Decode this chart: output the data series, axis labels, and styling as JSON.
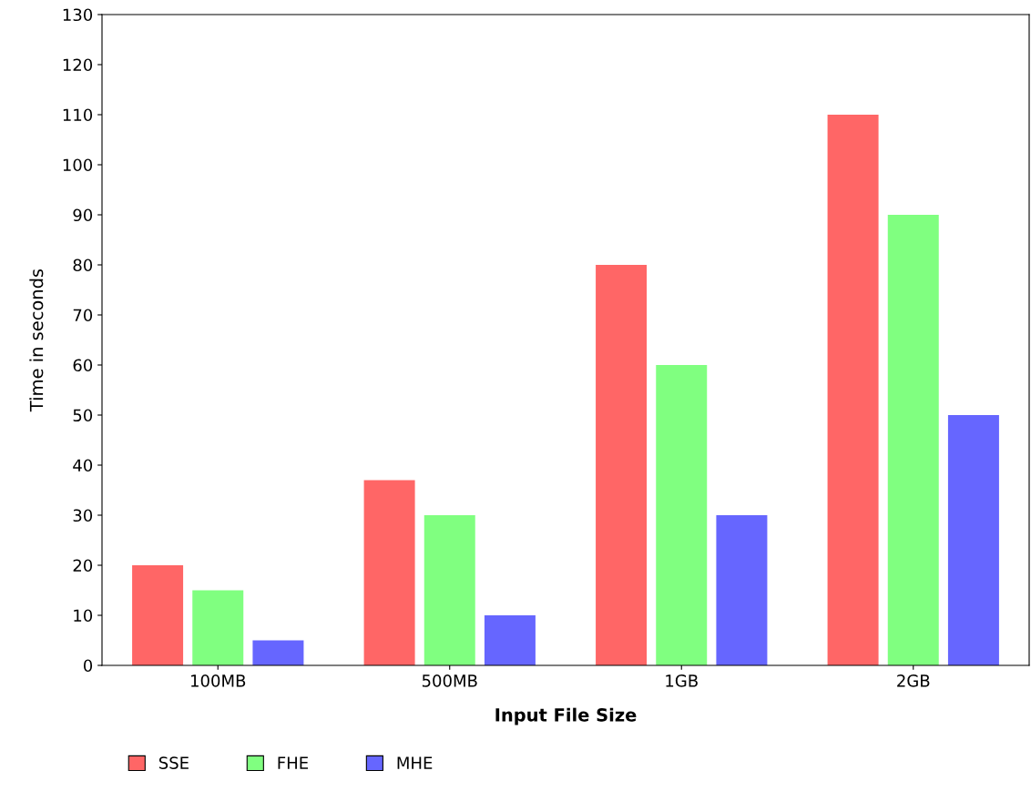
{
  "chart_data": {
    "type": "bar",
    "xlabel": "Input File Size",
    "ylabel": "Time in seconds",
    "categories": [
      "100MB",
      "500MB",
      "1GB",
      "2GB"
    ],
    "series": [
      {
        "name": "SSE",
        "color": "#ff6666",
        "values": [
          20,
          37,
          80,
          110
        ]
      },
      {
        "name": "FHE",
        "color": "#80ff80",
        "values": [
          15,
          30,
          60,
          90
        ]
      },
      {
        "name": "MHE",
        "color": "#6666ff",
        "values": [
          5,
          10,
          30,
          50
        ]
      }
    ],
    "ylim": [
      0,
      130
    ],
    "yticks": [
      0,
      10,
      20,
      30,
      40,
      50,
      60,
      70,
      80,
      90,
      100,
      110,
      120,
      130
    ],
    "grid": false,
    "legend": "bottom left"
  }
}
